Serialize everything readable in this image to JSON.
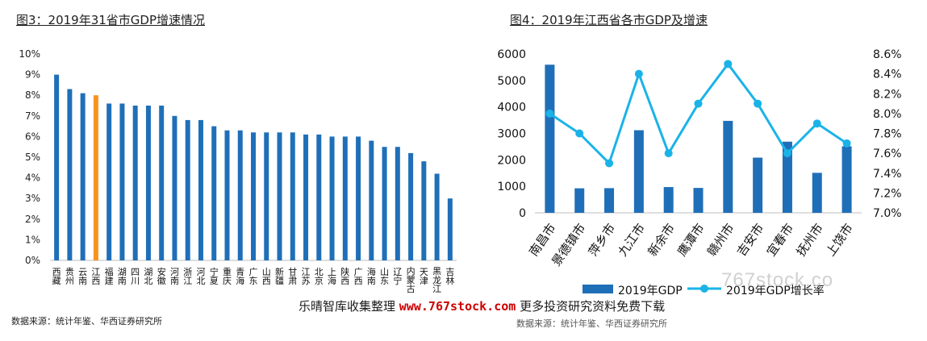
{
  "left": {
    "title": "图3：2019年31省市GDP增速情况",
    "source": "数据来源：统计年鉴、华西证券研究所"
  },
  "right": {
    "title": "图4：2019年江西省各市GDP及增速",
    "source": "数据来源：统计年鉴、华西证券研究所",
    "legend_bar": "2019年GDP",
    "legend_line": "2019年GDP增长率"
  },
  "banner": {
    "prefix": "乐晴智库收集整理",
    "url": "www.767stock.com",
    "suffix": "更多投资研究资料免费下载"
  },
  "watermark": "767stock.co",
  "colors": {
    "bar": "#1f6fb8",
    "highlight": "#f7931e",
    "line": "#1ab3e8"
  },
  "chart_data": [
    {
      "type": "bar",
      "title": "图3：2019年31省市GDP增速情况",
      "categories": [
        "西藏",
        "贵州",
        "云南",
        "江西",
        "福建",
        "湖南",
        "四川",
        "湖北",
        "安徽",
        "河南",
        "浙江",
        "河北",
        "宁夏",
        "重庆",
        "青海",
        "广东",
        "山西",
        "新疆",
        "甘肃",
        "江苏",
        "北京",
        "上海",
        "陕西",
        "广西",
        "海南",
        "山东",
        "辽宁",
        "内蒙古",
        "天津",
        "黑龙江",
        "吉林"
      ],
      "values": [
        9.0,
        8.3,
        8.1,
        8.0,
        7.6,
        7.6,
        7.5,
        7.5,
        7.5,
        7.0,
        6.8,
        6.8,
        6.5,
        6.3,
        6.3,
        6.2,
        6.2,
        6.2,
        6.2,
        6.1,
        6.1,
        6.0,
        6.0,
        6.0,
        5.8,
        5.5,
        5.5,
        5.2,
        4.8,
        4.2,
        3.0
      ],
      "highlight": "江西",
      "unit": "%",
      "ylim": [
        0,
        10
      ],
      "yticks": [
        "0%",
        "1%",
        "2%",
        "3%",
        "4%",
        "5%",
        "6%",
        "7%",
        "8%",
        "9%",
        "10%"
      ],
      "grid": false
    },
    {
      "type": "bar+line",
      "title": "图4：2019年江西省各市GDP及增速",
      "categories": [
        "南昌市",
        "景德镇市",
        "萍乡市",
        "九江市",
        "新余市",
        "鹰潭市",
        "赣州市",
        "吉安市",
        "宜春市",
        "抚州市",
        "上饶市"
      ],
      "series": [
        {
          "name": "2019年GDP",
          "type": "bar",
          "axis": "left",
          "values": [
            5596,
            926,
            932,
            3121,
            973,
            941,
            3474,
            2085,
            2688,
            1511,
            2514
          ]
        },
        {
          "name": "2019年GDP增长率",
          "type": "line",
          "axis": "right",
          "values": [
            8.0,
            7.8,
            7.5,
            8.4,
            7.6,
            8.1,
            8.5,
            8.1,
            7.6,
            7.9,
            7.7
          ]
        }
      ],
      "ylim_left": [
        0,
        6000
      ],
      "yticks_left": [
        "0",
        "1000",
        "2000",
        "3000",
        "4000",
        "5000",
        "6000"
      ],
      "ylim_right": [
        7.0,
        8.6
      ],
      "yticks_right": [
        "7.0%",
        "7.2%",
        "7.4%",
        "7.6%",
        "7.8%",
        "8.0%",
        "8.2%",
        "8.4%",
        "8.6%"
      ],
      "legend_position": "bottom",
      "grid": false
    }
  ]
}
